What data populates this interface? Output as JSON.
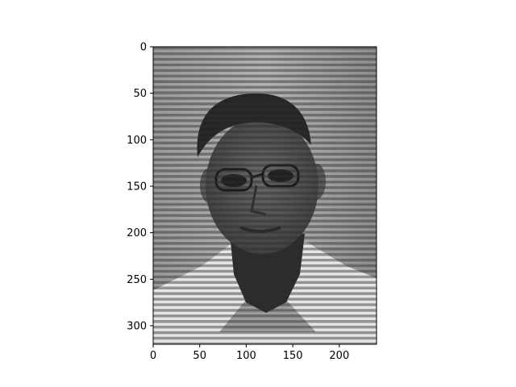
{
  "chart_data": {
    "type": "heatmap",
    "image_kind": "grayscale photograph with horizontal line pattern",
    "colormap": "gray",
    "xlim": [
      0,
      240
    ],
    "ylim": [
      320,
      0
    ],
    "xticks": [
      0,
      50,
      100,
      150,
      200
    ],
    "yticks": [
      0,
      50,
      100,
      150,
      200,
      250,
      300
    ],
    "xtick_labels": [
      "0",
      "50",
      "100",
      "150",
      "200"
    ],
    "ytick_labels": [
      "0",
      "50",
      "100",
      "150",
      "200",
      "250",
      "300"
    ],
    "stripe_period": 6,
    "grid": false,
    "title": "",
    "xlabel": "",
    "ylabel": ""
  },
  "colors": {
    "frame": "#000000",
    "background": "#a0a0a0",
    "shirt": "#e8e8e8",
    "hair": "#2a2a2a",
    "skin": "#5c5c5c",
    "stripe": "#2e2e2e"
  }
}
